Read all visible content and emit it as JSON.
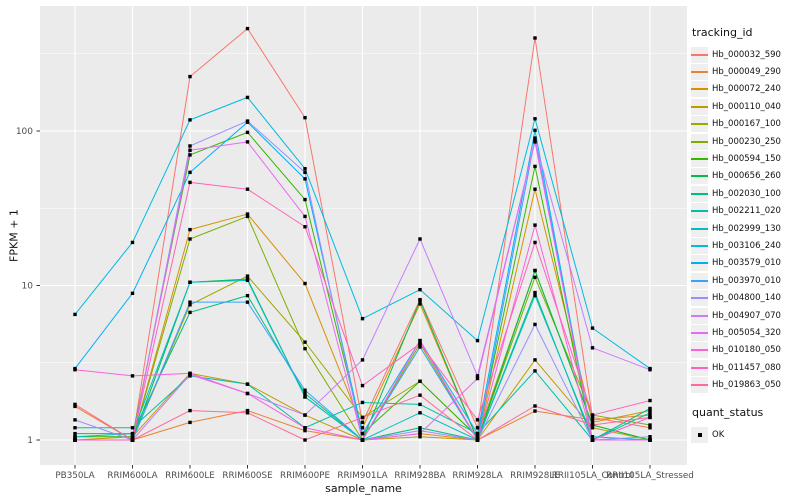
{
  "chart_data": {
    "type": "line",
    "title": "",
    "xlabel": "sample_name",
    "ylabel": "FPKM + 1",
    "y_scale": "log10",
    "ylim": [
      0.66,
      630
    ],
    "y_major_ticks": [
      1,
      10,
      100
    ],
    "y_tick_labels": [
      "1",
      "10",
      "100"
    ],
    "grid": "on",
    "panel_bg": "#EBEBEB",
    "grid_color": "#FFFFFF",
    "point_marker_color": "#000000",
    "legend_position": "right",
    "legend_title": "tracking_id",
    "quant_legend_title": "quant_status",
    "point_legend_label": "OK",
    "categories": [
      "PB350LA",
      "RRIM600LA",
      "RRIM600LE",
      "RRIM600SE",
      "RRIM600PE",
      "RRIM901LA",
      "RRIM928BA",
      "RRIM928LA",
      "RRIM928LE",
      "RRII105LA_Control",
      "RRII105LA_Stressed"
    ],
    "series": [
      {
        "name": "Hb_000032_590",
        "color": "#F8766D",
        "values": [
          1.0,
          1.0,
          225,
          460,
          122,
          1.3,
          8.1,
          1.2,
          400,
          1.4,
          1.2
        ]
      },
      {
        "name": "Hb_000049_290",
        "color": "#EA8331",
        "values": [
          1.65,
          1.0,
          1.3,
          1.55,
          1.15,
          1.0,
          1.1,
          1.0,
          1.54,
          1.35,
          1.45
        ]
      },
      {
        "name": "Hb_000072_240",
        "color": "#D89000",
        "values": [
          1.0,
          1.0,
          23,
          29,
          10.3,
          1.2,
          7.6,
          1.0,
          42,
          1.3,
          1.55
        ]
      },
      {
        "name": "Hb_000110_040",
        "color": "#C09B00",
        "values": [
          1.0,
          1.05,
          2.7,
          2.3,
          1.45,
          1.0,
          1.05,
          1.0,
          3.3,
          1.2,
          1.0
        ]
      },
      {
        "name": "Hb_000167_100",
        "color": "#A3A500",
        "values": [
          1.0,
          1.0,
          7.5,
          11.5,
          4.3,
          1.4,
          2.4,
          1.05,
          12.5,
          1.25,
          1.0
        ]
      },
      {
        "name": "Hb_000230_250",
        "color": "#7CAE00",
        "values": [
          1.0,
          1.0,
          20,
          28,
          3.9,
          1.0,
          4.2,
          1.0,
          11.3,
          1.45,
          1.25
        ]
      },
      {
        "name": "Hb_000594_150",
        "color": "#39B600",
        "values": [
          1.05,
          1.05,
          70,
          98,
          36,
          1.1,
          2.4,
          1.05,
          59,
          1.0,
          1.0
        ]
      },
      {
        "name": "Hb_000656_260",
        "color": "#00BB4E",
        "values": [
          1.0,
          1.0,
          10.5,
          11.0,
          1.9,
          1.0,
          8.0,
          1.0,
          12.5,
          1.25,
          1.0
        ]
      },
      {
        "name": "Hb_002030_100",
        "color": "#00BF7D",
        "values": [
          1.1,
          1.1,
          6.7,
          8.6,
          2.0,
          1.0,
          1.2,
          1.0,
          9.0,
          1.0,
          1.6
        ]
      },
      {
        "name": "Hb_002211_020",
        "color": "#00C1A3",
        "values": [
          1.2,
          1.2,
          2.6,
          2.3,
          1.2,
          1.75,
          1.7,
          1.1,
          2.8,
          1.0,
          1.5
        ]
      },
      {
        "name": "Hb_002999_130",
        "color": "#00BFC4",
        "values": [
          1.05,
          1.1,
          10.5,
          10.8,
          1.9,
          1.0,
          1.5,
          1.0,
          8.6,
          1.05,
          1.0
        ]
      },
      {
        "name": "Hb_003106_240",
        "color": "#00BAE0",
        "values": [
          6.5,
          19,
          118,
          165,
          57,
          6.1,
          9.4,
          4.4,
          120,
          5.3,
          2.9
        ]
      },
      {
        "name": "Hb_003579_010",
        "color": "#00B0F6",
        "values": [
          2.9,
          8.9,
          54,
          114,
          49,
          1.1,
          4.4,
          1.1,
          101,
          1.0,
          1.0
        ]
      },
      {
        "name": "Hb_003970_010",
        "color": "#35A2FF",
        "values": [
          1.0,
          1.0,
          7.8,
          7.8,
          2.1,
          1.0,
          4.0,
          1.0,
          90,
          1.0,
          1.0
        ]
      },
      {
        "name": "Hb_004800_140",
        "color": "#9590FF",
        "values": [
          1.35,
          1.0,
          80,
          116,
          54,
          1.0,
          1.15,
          1.0,
          5.6,
          1.0,
          1.05
        ]
      },
      {
        "name": "Hb_004907_070",
        "color": "#C77CFF",
        "values": [
          1.0,
          1.0,
          2.65,
          2.0,
          1.45,
          3.3,
          20,
          2.6,
          86,
          3.95,
          2.85
        ]
      },
      {
        "name": "Hb_005054_320",
        "color": "#E76BF3",
        "values": [
          1.0,
          1.0,
          75,
          85,
          28,
          1.0,
          1.1,
          2.5,
          85,
          1.0,
          1.0
        ]
      },
      {
        "name": "Hb_010180_050",
        "color": "#FA62DB",
        "values": [
          2.85,
          2.6,
          2.7,
          2.0,
          1.2,
          1.0,
          4.4,
          1.0,
          24.6,
          1.0,
          1.4
        ]
      },
      {
        "name": "Hb_011457_080",
        "color": "#FF62BC",
        "values": [
          1.0,
          1.0,
          46.5,
          42,
          24,
          2.25,
          4.2,
          1.35,
          19,
          1.45,
          1.8
        ]
      },
      {
        "name": "Hb_019863_050",
        "color": "#FF6A98",
        "values": [
          1.7,
          1.0,
          1.55,
          1.5,
          1.0,
          1.4,
          1.95,
          1.0,
          1.66,
          1.25,
          1.4
        ]
      }
    ]
  }
}
